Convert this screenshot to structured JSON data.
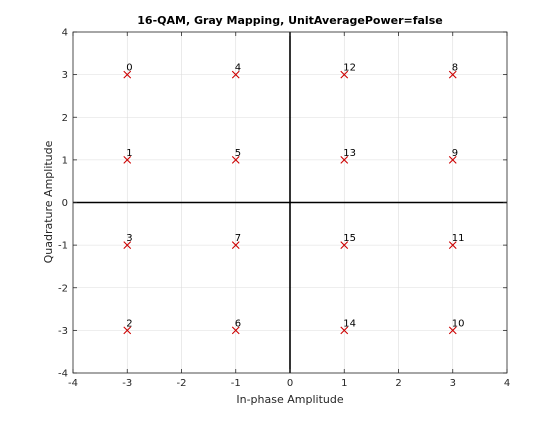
{
  "chart_data": {
    "type": "scatter",
    "title": "16-QAM, Gray Mapping, UnitAveragePower=false",
    "xlabel": "In-phase Amplitude",
    "ylabel": "Quadrature Amplitude",
    "xlim": [
      -4,
      4
    ],
    "ylim": [
      -4,
      4
    ],
    "xticks": [
      -4,
      -3,
      -2,
      -1,
      0,
      1,
      2,
      3,
      4
    ],
    "yticks": [
      -4,
      -3,
      -2,
      -1,
      0,
      1,
      2,
      3,
      4
    ],
    "grid": true,
    "marker": "x",
    "marker_color": "#cc0000",
    "points": [
      {
        "x": -3,
        "y": 3,
        "label": "0"
      },
      {
        "x": -3,
        "y": 1,
        "label": "1"
      },
      {
        "x": -3,
        "y": -3,
        "label": "2"
      },
      {
        "x": -3,
        "y": -1,
        "label": "3"
      },
      {
        "x": -1,
        "y": 3,
        "label": "4"
      },
      {
        "x": -1,
        "y": 1,
        "label": "5"
      },
      {
        "x": -1,
        "y": -3,
        "label": "6"
      },
      {
        "x": -1,
        "y": -1,
        "label": "7"
      },
      {
        "x": 3,
        "y": 3,
        "label": "8"
      },
      {
        "x": 3,
        "y": 1,
        "label": "9"
      },
      {
        "x": 3,
        "y": -3,
        "label": "10"
      },
      {
        "x": 3,
        "y": -1,
        "label": "11"
      },
      {
        "x": 1,
        "y": 3,
        "label": "12"
      },
      {
        "x": 1,
        "y": 1,
        "label": "13"
      },
      {
        "x": 1,
        "y": -3,
        "label": "14"
      },
      {
        "x": 1,
        "y": -1,
        "label": "15"
      }
    ]
  }
}
